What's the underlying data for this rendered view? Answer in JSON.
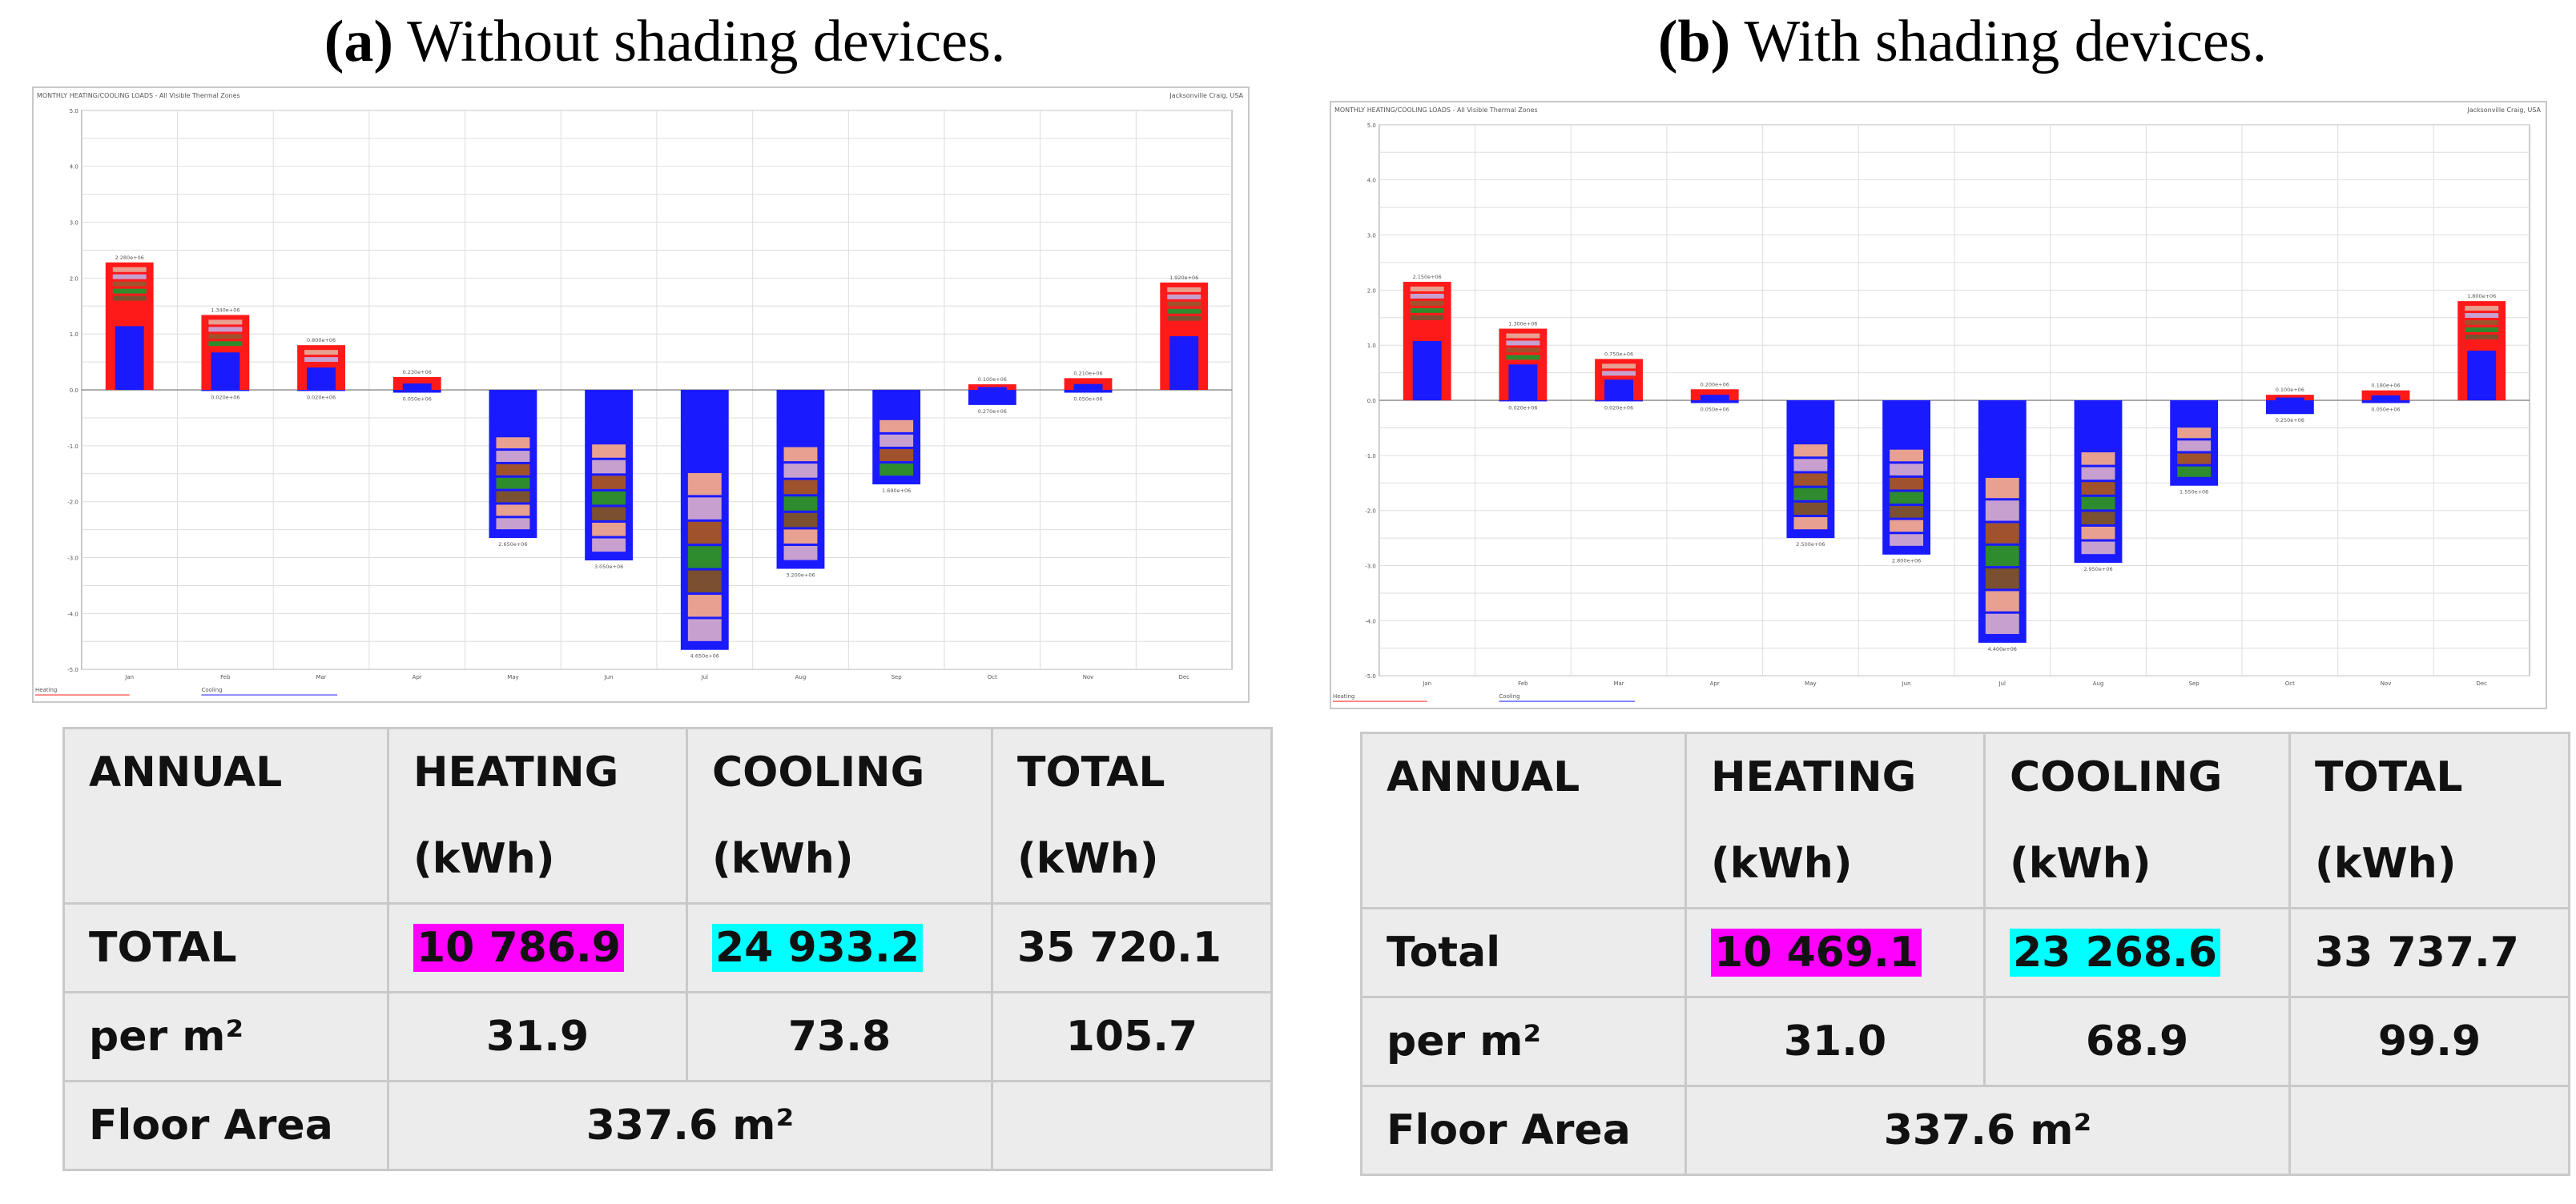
{
  "panels": [
    {
      "caption_label": "(a)",
      "caption_text": "Without shading devices.",
      "table": {
        "headers": [
          "ANNUAL",
          "HEATING",
          "COOLING",
          "TOTAL"
        ],
        "units": [
          "",
          "(kWh)",
          "(kWh)",
          "(kWh)"
        ],
        "total_row": {
          "label": "TOTAL",
          "heating": "10 786.9",
          "cooling": "24 933.2",
          "total": "35 720.1"
        },
        "per_m2_row": {
          "label": "per m²",
          "heating": "31.9",
          "cooling": "73.8",
          "total": "105.7"
        },
        "floor_row": {
          "label": "Floor Area",
          "value": "337.6 m²"
        }
      }
    },
    {
      "caption_label": "(b)",
      "caption_text": "With shading devices.",
      "table": {
        "headers": [
          "ANNUAL",
          "HEATING",
          "COOLING",
          "TOTAL"
        ],
        "units": [
          "",
          "(kWh)",
          "(kWh)",
          "(kWh)"
        ],
        "total_row": {
          "label": "Total",
          "heating": "10 469.1",
          "cooling": "23 268.6",
          "total": "33 737.7"
        },
        "per_m2_row": {
          "label": "per m²",
          "heating": "31.0",
          "cooling": "68.9",
          "total": "99.9"
        },
        "floor_row": {
          "label": "Floor Area",
          "value": "337.6 m²"
        }
      }
    }
  ],
  "chart_data": [
    {
      "type": "bar",
      "title": "MONTHLY HEATING/COOLING LOADS - All Visible Thermal Zones",
      "location": "Jacksonville Craig, USA",
      "categories": [
        "Jan",
        "Feb",
        "Mar",
        "Apr",
        "May",
        "Jun",
        "Jul",
        "Aug",
        "Sep",
        "Oct",
        "Nov",
        "Dec"
      ],
      "series": [
        {
          "name": "Heating",
          "values": [
            2.28,
            1.34,
            0.8,
            0.23,
            0,
            0,
            0,
            0,
            0,
            0.1,
            0.21,
            1.92
          ]
        },
        {
          "name": "Cooling",
          "values": [
            0,
            -0.02,
            -0.02,
            -0.05,
            -2.65,
            -3.05,
            -4.65,
            -3.2,
            -1.69,
            -0.27,
            -0.05,
            0
          ]
        }
      ],
      "ylim": [
        -5.0,
        5.0
      ],
      "legend": [
        "Heating",
        "Cooling"
      ]
    },
    {
      "type": "bar",
      "title": "MONTHLY HEATING/COOLING LOADS - All Visible Thermal Zones",
      "location": "Jacksonville Craig, USA",
      "categories": [
        "Jan",
        "Feb",
        "Mar",
        "Apr",
        "May",
        "Jun",
        "Jul",
        "Aug",
        "Sep",
        "Oct",
        "Nov",
        "Dec"
      ],
      "series": [
        {
          "name": "Heating",
          "values": [
            2.15,
            1.3,
            0.75,
            0.2,
            0,
            0,
            0,
            0,
            0,
            0.1,
            0.18,
            1.8
          ]
        },
        {
          "name": "Cooling",
          "values": [
            0,
            -0.02,
            -0.02,
            -0.05,
            -2.5,
            -2.8,
            -4.4,
            -2.95,
            -1.55,
            -0.25,
            -0.05,
            0
          ]
        }
      ],
      "ylim": [
        -5.0,
        5.0
      ],
      "legend": [
        "Heating",
        "Cooling"
      ]
    }
  ]
}
